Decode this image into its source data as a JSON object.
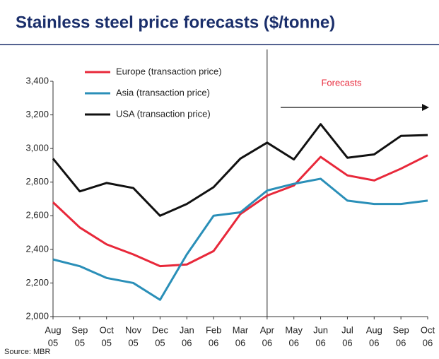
{
  "chart_data": {
    "type": "line",
    "title": "Stainless steel price forecasts ($/tonne)",
    "source": "Source: MBR",
    "annotation": "Forecasts",
    "categories": [
      [
        "Aug",
        "05"
      ],
      [
        "Sep",
        "05"
      ],
      [
        "Oct",
        "05"
      ],
      [
        "Nov",
        "05"
      ],
      [
        "Dec",
        "05"
      ],
      [
        "Jan",
        "06"
      ],
      [
        "Feb",
        "06"
      ],
      [
        "Mar",
        "06"
      ],
      [
        "Apr",
        "06"
      ],
      [
        "May",
        "06"
      ],
      [
        "Jun",
        "06"
      ],
      [
        "Jul",
        "06"
      ],
      [
        "Aug",
        "06"
      ],
      [
        "Sep",
        "06"
      ],
      [
        "Oct",
        "06"
      ]
    ],
    "series": [
      {
        "name": "Europe (transaction price)",
        "color": "#e8283a",
        "values": [
          2680,
          2530,
          2430,
          2370,
          2300,
          2310,
          2390,
          2610,
          2720,
          2780,
          2950,
          2840,
          2810,
          2880,
          2960
        ]
      },
      {
        "name": "Asia (transaction price)",
        "color": "#2a8fb8",
        "values": [
          2340,
          2300,
          2230,
          2200,
          2100,
          2370,
          2600,
          2620,
          2750,
          2790,
          2820,
          2690,
          2670,
          2670,
          2690
        ]
      },
      {
        "name": "USA (transaction price)",
        "color": "#111111",
        "values": [
          2940,
          2745,
          2795,
          2765,
          2600,
          2670,
          2770,
          2940,
          3035,
          2935,
          3145,
          2945,
          2965,
          3075,
          3080
        ]
      }
    ],
    "ylim": [
      2000,
      3400
    ],
    "yticks": [
      {
        "value": 2000,
        "label": "2,000"
      },
      {
        "value": 2200,
        "label": "2,200"
      },
      {
        "value": 2400,
        "label": "2,400"
      },
      {
        "value": 2600,
        "label": "2,600"
      },
      {
        "value": 2800,
        "label": "2,800"
      },
      {
        "value": 3000,
        "label": "3,000"
      },
      {
        "value": 3200,
        "label": "3,200"
      },
      {
        "value": 3400,
        "label": "3,400"
      }
    ],
    "grid": false,
    "legend": "upper left"
  }
}
